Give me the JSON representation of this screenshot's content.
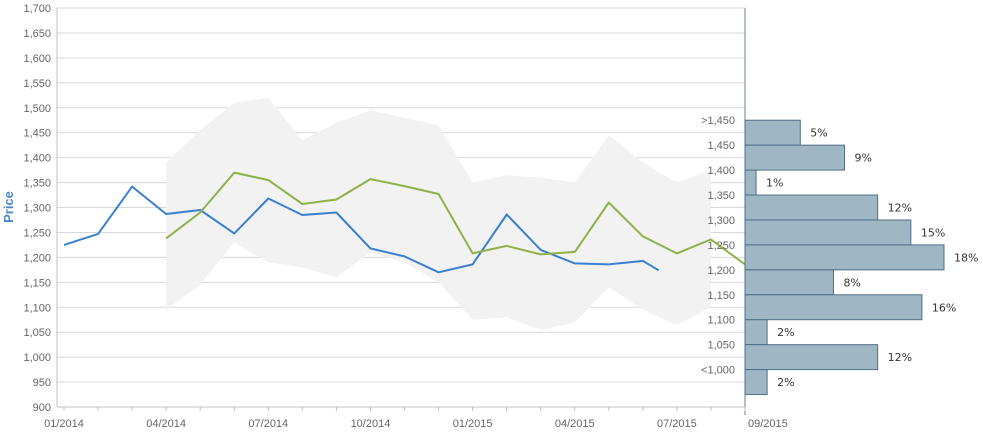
{
  "chart_data": {
    "type": "line",
    "ylabel": "Price",
    "ylim": [
      900,
      1700
    ],
    "y_ticks": [
      900,
      950,
      1000,
      1050,
      1100,
      1150,
      1200,
      1250,
      1300,
      1350,
      1400,
      1450,
      1500,
      1550,
      1600,
      1650,
      1700
    ],
    "y_tick_labels": [
      "900",
      "950",
      "1,000",
      "1,050",
      "1,100",
      "1,150",
      "1,200",
      "1,250",
      "1,300",
      "1,350",
      "1,400",
      "1,450",
      "1,500",
      "1,550",
      "1,600",
      "1,650",
      "1,700"
    ],
    "x_tick_labels": [
      "01/2014",
      "04/2014",
      "07/2014",
      "10/2014",
      "01/2015",
      "04/2015",
      "07/2015",
      "09/2015"
    ],
    "x_tick_dates": [
      "2014-01",
      "2014-04",
      "2014-07",
      "2014-10",
      "2015-01",
      "2015-04",
      "2015-07",
      "2015-09"
    ],
    "grid": true,
    "series": [
      {
        "color": "#3a7fcf",
        "x": [
          "2014-01",
          "2014-02",
          "2014-03",
          "2014-04",
          "2014-05",
          "2014-06",
          "2014-07",
          "2014-08",
          "2014-09",
          "2014-10",
          "2014-11",
          "2014-12",
          "2015-01",
          "2015-02",
          "2015-03",
          "2015-04",
          "2015-05",
          "2015-06",
          "2015-06-15"
        ],
        "values": [
          1225,
          1247,
          1342,
          1287,
          1295,
          1248,
          1318,
          1285,
          1290,
          1218,
          1202,
          1170,
          1186,
          1286,
          1215,
          1188,
          1186,
          1193,
          1174
        ]
      },
      {
        "color": "#8fb04a",
        "x": [
          "2014-04",
          "2014-05",
          "2014-06",
          "2014-07",
          "2014-08",
          "2014-09",
          "2014-10",
          "2014-11",
          "2014-12",
          "2015-01",
          "2015-02",
          "2015-03",
          "2015-04",
          "2015-05",
          "2015-06",
          "2015-07",
          "2015-08",
          "2015-09"
        ],
        "values": [
          1238,
          1290,
          1370,
          1355,
          1307,
          1316,
          1357,
          1343,
          1327,
          1208,
          1223,
          1206,
          1211,
          1310,
          1242,
          1208,
          1236,
          1186
        ]
      }
    ],
    "band": {
      "color": "#f2f2f2",
      "x": [
        "2014-04",
        "2014-05",
        "2014-06",
        "2014-07",
        "2014-08",
        "2014-09",
        "2014-10",
        "2014-11",
        "2014-12",
        "2015-01",
        "2015-02",
        "2015-03",
        "2015-04",
        "2015-05",
        "2015-06",
        "2015-07",
        "2015-08"
      ],
      "upper": [
        1390,
        1455,
        1510,
        1520,
        1435,
        1470,
        1495,
        1480,
        1465,
        1350,
        1365,
        1360,
        1350,
        1445,
        1390,
        1350,
        1375
      ],
      "lower": [
        1095,
        1145,
        1230,
        1190,
        1180,
        1160,
        1210,
        1190,
        1150,
        1075,
        1080,
        1055,
        1070,
        1140,
        1095,
        1065,
        1100
      ]
    },
    "histogram": {
      "color": "#9fb6c5",
      "bins": [
        {
          "label": ">1,450",
          "pct": 5,
          "text": "5%"
        },
        {
          "label": "1,450",
          "pct": 9,
          "text": "9%"
        },
        {
          "label": "1,400",
          "pct": 1,
          "text": "1%"
        },
        {
          "label": "1,350",
          "pct": 12,
          "text": "12%"
        },
        {
          "label": "1,300",
          "pct": 15,
          "text": "15%"
        },
        {
          "label": "1,250",
          "pct": 18,
          "text": "18%"
        },
        {
          "label": "1,200",
          "pct": 8,
          "text": "8%"
        },
        {
          "label": "1,150",
          "pct": 16,
          "text": "16%"
        },
        {
          "label": "1,100",
          "pct": 2,
          "text": "2%"
        },
        {
          "label": "1,050",
          "pct": 12,
          "text": "12%"
        },
        {
          "label": "<1,000",
          "pct": 2,
          "text": "2%"
        }
      ]
    }
  }
}
